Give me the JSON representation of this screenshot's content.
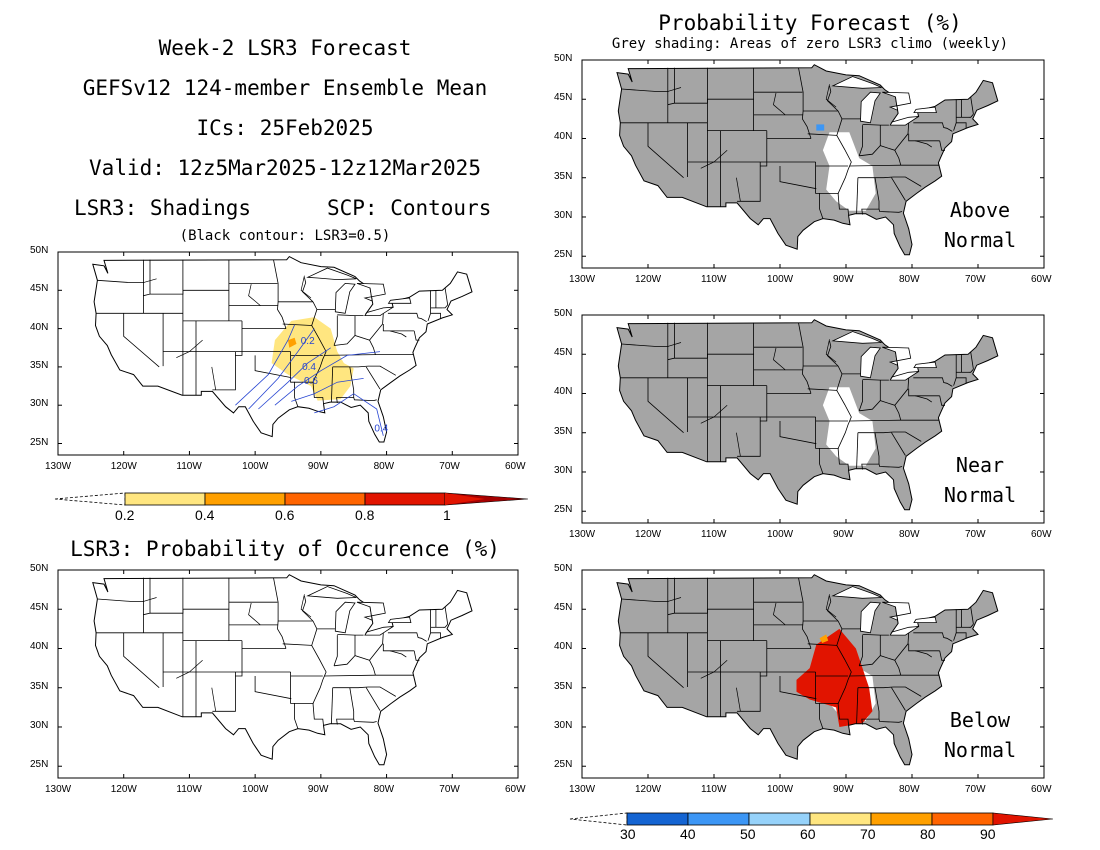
{
  "header": {
    "title": "Week-2 LSR3 Forecast",
    "model": "GEFSv12 124-member Ensemble Mean",
    "ics": "ICs: 25Feb2025",
    "valid": "Valid: 12z5Mar2025-12z12Mar2025",
    "shadings": "LSR3: Shadings",
    "contours": "SCP: Contours",
    "black_contour": "(Black contour: LSR3=0.5)"
  },
  "right_header": {
    "title": "Probability Forecast (%)",
    "subtitle": "Grey shading: Areas of zero LSR3 climo (weekly)"
  },
  "occurrence_title": "LSR3: Probability of Occurence (%)",
  "axes": {
    "lat_labels": [
      "50N",
      "45N",
      "40N",
      "35N",
      "30N",
      "25N"
    ],
    "lon_labels": [
      "130W",
      "120W",
      "110W",
      "100W",
      "90W",
      "80W",
      "70W",
      "60W"
    ]
  },
  "panels": [
    {
      "id": "lsr3-shading",
      "contour_labels": [
        "0.2",
        "0.4",
        "0.6",
        "0.4"
      ]
    },
    {
      "id": "lsr3-occurrence"
    },
    {
      "id": "above-normal",
      "label_line1": "Above",
      "label_line2": "Normal"
    },
    {
      "id": "near-normal",
      "label_line1": "Near",
      "label_line2": "Normal"
    },
    {
      "id": "below-normal",
      "label_line1": "Below",
      "label_line2": "Normal"
    }
  ],
  "colorbar_left": {
    "labels": [
      "0.2",
      "0.4",
      "0.6",
      "0.8",
      "1"
    ],
    "colors": [
      "#ffe680",
      "#ffa000",
      "#ff6400",
      "#e11400",
      "#a50000"
    ]
  },
  "colorbar_right": {
    "labels": [
      "30",
      "40",
      "50",
      "60",
      "70",
      "80",
      "90"
    ],
    "colors": [
      "#1464d2",
      "#3c96f5",
      "#96d2fa",
      "#ffe680",
      "#ffa000",
      "#ff6400",
      "#e11400",
      "#a50000"
    ]
  },
  "colors": {
    "grey_zero_climo": "#a5a5a5",
    "shade_yellow": "#ffe680",
    "shade_orange": "#ffa000",
    "prob_red": "#e11400",
    "prob_blue": "#3c96f5",
    "contour_blue": "#2846d2"
  }
}
